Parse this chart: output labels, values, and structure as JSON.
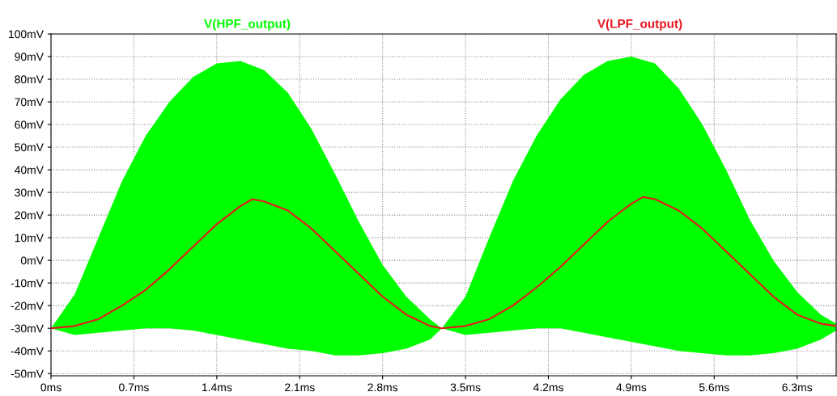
{
  "chart_data": {
    "type": "line",
    "legend": "top",
    "grid": true,
    "line_style": "solid",
    "marker": "none",
    "xlim": [
      0,
      6.63
    ],
    "ylim": [
      -51,
      100
    ],
    "xticks": [
      {
        "value": 0,
        "label": "0ms"
      },
      {
        "value": 0.7,
        "label": "0.7ms"
      },
      {
        "value": 1.4,
        "label": "1.4ms"
      },
      {
        "value": 2.1,
        "label": "2.1ms"
      },
      {
        "value": 2.8,
        "label": "2.8ms"
      },
      {
        "value": 3.5,
        "label": "3.5ms"
      },
      {
        "value": 4.2,
        "label": "4.2ms"
      },
      {
        "value": 4.9,
        "label": "4.9ms"
      },
      {
        "value": 5.6,
        "label": "5.6ms"
      },
      {
        "value": 6.3,
        "label": "6.3ms"
      }
    ],
    "yticks": [
      {
        "value": -50,
        "label": "-50mV"
      },
      {
        "value": -40,
        "label": "-40mV"
      },
      {
        "value": -30,
        "label": "-30mV"
      },
      {
        "value": -20,
        "label": "-20mV"
      },
      {
        "value": -10,
        "label": "-10mV"
      },
      {
        "value": 0,
        "label": "0mV"
      },
      {
        "value": 10,
        "label": "10mV"
      },
      {
        "value": 20,
        "label": "20mV"
      },
      {
        "value": 30,
        "label": "30mV"
      },
      {
        "value": 40,
        "label": "40mV"
      },
      {
        "value": 50,
        "label": "50mV"
      },
      {
        "value": 60,
        "label": "60mV"
      },
      {
        "value": 70,
        "label": "70mV"
      },
      {
        "value": 80,
        "label": "80mV"
      },
      {
        "value": 90,
        "label": "90mV"
      },
      {
        "value": 100,
        "label": "100mV"
      }
    ],
    "series": [
      {
        "name": "V(HPF_output)",
        "color": "#00ff00",
        "x": [
          0,
          0.2,
          0.4,
          0.6,
          0.8,
          1.0,
          1.2,
          1.4,
          1.6,
          1.8,
          2.0,
          2.2,
          2.4,
          2.6,
          2.8,
          3.0,
          3.2,
          3.3,
          3.5,
          3.7,
          3.9,
          4.1,
          4.3,
          4.5,
          4.7,
          4.9,
          5.1,
          5.3,
          5.5,
          5.7,
          5.9,
          6.1,
          6.3,
          6.5,
          6.63
        ],
        "values": [
          null,
          null,
          null,
          null,
          null,
          null,
          null,
          null,
          null,
          null,
          null,
          null,
          null,
          null,
          null,
          null,
          null,
          null,
          null,
          null,
          null,
          null,
          null,
          null,
          null,
          null,
          null,
          null,
          null,
          null,
          null,
          null,
          null,
          null,
          null
        ],
        "upper": [
          -30,
          -15,
          10,
          35,
          55,
          70,
          81,
          87,
          88,
          84,
          74,
          58,
          38,
          17,
          -2,
          -16,
          -26,
          -30,
          -16,
          10,
          35,
          55,
          71,
          82,
          88,
          90,
          87,
          76,
          60,
          40,
          18,
          0,
          -14,
          -24,
          -28
        ],
        "lower": [
          -30,
          -33,
          -32,
          -31,
          -30,
          -30,
          -31,
          -33,
          -35,
          -37,
          -39,
          -40,
          -42,
          -42,
          -41,
          -39,
          -35,
          -30,
          -33,
          -32,
          -31,
          -30,
          -30,
          -32,
          -34,
          -36,
          -38,
          -40,
          -41,
          -42,
          -42,
          -41,
          -39,
          -35,
          -31
        ]
      },
      {
        "name": "V(LPF_output)",
        "color": "#e8171f",
        "x": [
          0,
          0.2,
          0.4,
          0.6,
          0.8,
          1.0,
          1.2,
          1.4,
          1.6,
          1.7,
          1.8,
          2.0,
          2.2,
          2.4,
          2.6,
          2.8,
          3.0,
          3.2,
          3.3,
          3.5,
          3.7,
          3.9,
          4.1,
          4.3,
          4.5,
          4.7,
          4.9,
          5.0,
          5.1,
          5.3,
          5.5,
          5.7,
          5.9,
          6.1,
          6.3,
          6.5,
          6.63
        ],
        "values": [
          -30,
          -29,
          -26,
          -20,
          -13,
          -4,
          6,
          16,
          24,
          27,
          26,
          22,
          14,
          4,
          -6,
          -16,
          -24,
          -29,
          -30,
          -29,
          -26,
          -20,
          -12,
          -3,
          7,
          17,
          25,
          28,
          27,
          22,
          14,
          4,
          -6,
          -16,
          -24,
          -28,
          -29
        ]
      }
    ]
  }
}
